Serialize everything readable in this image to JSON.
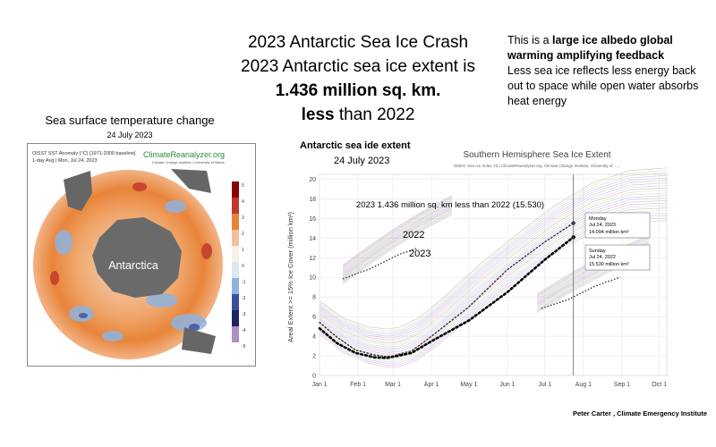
{
  "header": {
    "line1": "2023 Antarctic Sea Ice Crash",
    "line2": "2023 Antarctic sea ice extent is",
    "line3": "1.436 million sq. km.",
    "line4_bold": "less",
    "line4_rest": " than 2022"
  },
  "side_note": {
    "intro": "This is a ",
    "bold": "large ice albedo global warming amplifying feedback",
    "body": "Less sea ice reflects less energy back out to space while open water absorbs heat energy"
  },
  "sst": {
    "heading": "Sea surface temperature change",
    "date": "24 July 2023",
    "map_title": "OISST SST Anomaly (°C) [1971-2000 baseline]",
    "map_subtitle": "1-day Avg | Mon, Jul 24, 2023",
    "brand": "ClimateReanalyzer.org",
    "brand_sub": "Climate Change Institute | University of Maine",
    "continent_label": "Antarctica",
    "colorbar_ticks": [
      "5",
      "4",
      "3",
      "2",
      "1",
      "0",
      "-1",
      "-2",
      "-3",
      "-4",
      "-5"
    ],
    "colors": {
      "warm": "#e8843a",
      "hot": "#c0392b",
      "cool": "#7fa7d6",
      "cold": "#3b4fa0",
      "land": "#666666"
    }
  },
  "chart_overlay": {
    "title": "Antarctic sea ide extent",
    "date": "24 July 2023",
    "note": "2023 1.436 million sq. km less than 2022 (15.530)",
    "label_2022": "2022",
    "label_2023": "2023"
  },
  "chart_data": {
    "type": "line",
    "title": "Southern Hemisphere Sea Ice Extent",
    "subtitle": "NSIDC Sea Ice Index V3 | ClimateReanalyzer.org, Climate Change Institute, University of ......",
    "ylabel": "Areal Extent >= 15% Ice Cover (million km²)",
    "xlabel": "",
    "x_ticks": [
      "Jan 1",
      "Feb 1",
      "Mar 1",
      "Apr 1",
      "May 1",
      "Jun 1",
      "Jul 1",
      "Aug 1",
      "Sep 1",
      "Oct 1"
    ],
    "x_tick_days": [
      1,
      32,
      60,
      91,
      121,
      152,
      182,
      213,
      244,
      274
    ],
    "xlim": [
      1,
      280
    ],
    "y_ticks": [
      0,
      2,
      4,
      6,
      8,
      10,
      12,
      14,
      16,
      18,
      20
    ],
    "ylim": [
      0,
      20.5
    ],
    "grid": true,
    "current_day": 205,
    "series": [
      {
        "name": "2022",
        "color": "#333333",
        "style": "dotted-thin",
        "x": [
          1,
          15,
          30,
          45,
          55,
          60,
          75,
          91,
          121,
          152,
          182,
          205
        ],
        "y": [
          5.4,
          3.9,
          2.6,
          2.1,
          1.92,
          2.0,
          2.5,
          4.0,
          7.0,
          10.8,
          13.6,
          15.53
        ]
      },
      {
        "name": "2023",
        "color": "#000000",
        "style": "dotted-thick",
        "x": [
          1,
          15,
          30,
          45,
          55,
          60,
          75,
          91,
          121,
          152,
          182,
          205
        ],
        "y": [
          4.8,
          3.3,
          2.3,
          1.85,
          1.79,
          1.9,
          2.3,
          3.5,
          5.6,
          8.5,
          11.8,
          14.094
        ]
      }
    ],
    "annotations": [
      {
        "day_label": "Monday",
        "date": "Jul 24, 2023",
        "value": "14.094 million km²"
      },
      {
        "day_label": "Sunday",
        "date": "Jul 24, 2022",
        "value": "15.530 million km²"
      }
    ]
  },
  "credit": "Peter Carter , Climate Emergency Institute"
}
